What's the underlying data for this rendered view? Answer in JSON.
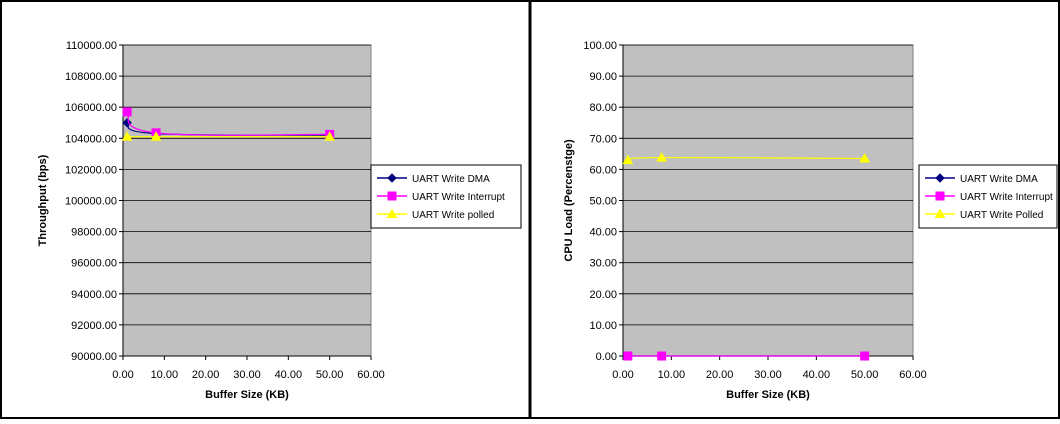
{
  "chart_data": [
    {
      "type": "line",
      "xlabel": "Buffer Size (KB)",
      "ylabel": "Throughput (bps)",
      "xlim": [
        0,
        60
      ],
      "ylim": [
        90000,
        110000
      ],
      "x_ticks": [
        "0.00",
        "10.00",
        "20.00",
        "30.00",
        "40.00",
        "50.00",
        "60.00"
      ],
      "y_ticks": [
        "90000.00",
        "92000.00",
        "94000.00",
        "96000.00",
        "98000.00",
        "100000.00",
        "102000.00",
        "104000.00",
        "106000.00",
        "108000.00",
        "110000.00"
      ],
      "grid": "horizontal",
      "plot_background": "#c0c0c0",
      "legend_position": "right",
      "series": [
        {
          "name": "UART Write DMA",
          "color": "#000080",
          "marker": "diamond",
          "x": [
            1,
            8,
            50
          ],
          "y": [
            105000,
            104300,
            104200
          ]
        },
        {
          "name": "UART Write Interrupt",
          "color": "#ff00ff",
          "marker": "square",
          "x": [
            1,
            8,
            50
          ],
          "y": [
            105700,
            104350,
            104250
          ]
        },
        {
          "name": "UART Write polled",
          "color": "#ffff00",
          "marker": "triangle",
          "x": [
            1,
            8,
            50
          ],
          "y": [
            104100,
            104100,
            104100
          ]
        }
      ]
    },
    {
      "type": "line",
      "xlabel": "Buffer Size (KB)",
      "ylabel": "CPU Load (Percenstge)",
      "xlim": [
        0,
        60
      ],
      "ylim": [
        0,
        100
      ],
      "x_ticks": [
        "0.00",
        "10.00",
        "20.00",
        "30.00",
        "40.00",
        "50.00",
        "60.00"
      ],
      "y_ticks": [
        "0.00",
        "10.00",
        "20.00",
        "30.00",
        "40.00",
        "50.00",
        "60.00",
        "70.00",
        "80.00",
        "90.00",
        "100.00"
      ],
      "grid": "horizontal",
      "plot_background": "#c0c0c0",
      "legend_position": "right",
      "series": [
        {
          "name": "UART Write DMA",
          "color": "#000080",
          "marker": "diamond",
          "x": [
            1,
            8,
            50
          ],
          "y": [
            0,
            0,
            0
          ]
        },
        {
          "name": "UART Write Interrupt",
          "color": "#ff00ff",
          "marker": "square",
          "x": [
            1,
            8,
            50
          ],
          "y": [
            0,
            0,
            0
          ]
        },
        {
          "name": "UART Write Polled",
          "color": "#ffff00",
          "marker": "triangle",
          "x": [
            1,
            8,
            50
          ],
          "y": [
            63,
            63.8,
            63.5
          ]
        }
      ]
    }
  ]
}
